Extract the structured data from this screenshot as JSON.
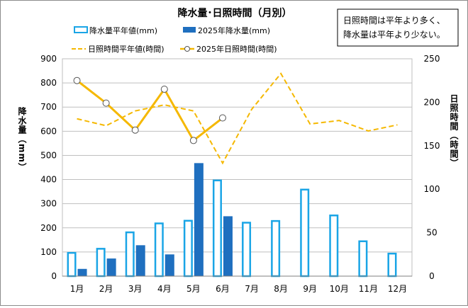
{
  "chart_data": {
    "type": "bar",
    "title": "降水量･日照時間（月別）",
    "annotation": [
      "日照時間は平年より多く、",
      "降水量は平年より少ない。"
    ],
    "categories": [
      "1月",
      "2月",
      "3月",
      "4月",
      "5月",
      "6月",
      "7月",
      "8月",
      "9月",
      "10月",
      "11月",
      "12月"
    ],
    "ylabel_left": "降水量（mm）",
    "ylabel_right": "日照時間（時間）",
    "ylim_left": [
      0,
      900
    ],
    "yticks_left": [
      0,
      100,
      200,
      300,
      400,
      500,
      600,
      700,
      800,
      900
    ],
    "ylim_right": [
      0,
      250
    ],
    "yticks_right": [
      0,
      50,
      100,
      150,
      200,
      250
    ],
    "grid": true,
    "series": [
      {
        "name": "降水量平年値(mm)",
        "kind": "bar-outline",
        "axis": "left",
        "color": "#1aa5e6",
        "values": [
          100,
          117,
          185,
          222,
          233,
          400,
          225,
          232,
          362,
          255,
          148,
          97
        ]
      },
      {
        "name": "2025年降水量(mm)",
        "kind": "bar",
        "axis": "left",
        "color": "#1f6fbf",
        "values": [
          30,
          73,
          128,
          90,
          468,
          248,
          null,
          null,
          null,
          null,
          null,
          null
        ]
      },
      {
        "name": "日照時間平年値(時間)",
        "kind": "line-dashed",
        "axis": "right",
        "color": "#f5b800",
        "values": [
          181,
          173,
          190,
          197,
          190,
          130,
          192,
          233,
          175,
          179,
          167,
          174
        ]
      },
      {
        "name": "2025年日照時間(時間)",
        "kind": "line-marker",
        "axis": "right",
        "color": "#f5b800",
        "values": [
          225,
          199,
          168,
          215,
          156,
          182,
          null,
          null,
          null,
          null,
          null,
          null
        ]
      }
    ]
  }
}
